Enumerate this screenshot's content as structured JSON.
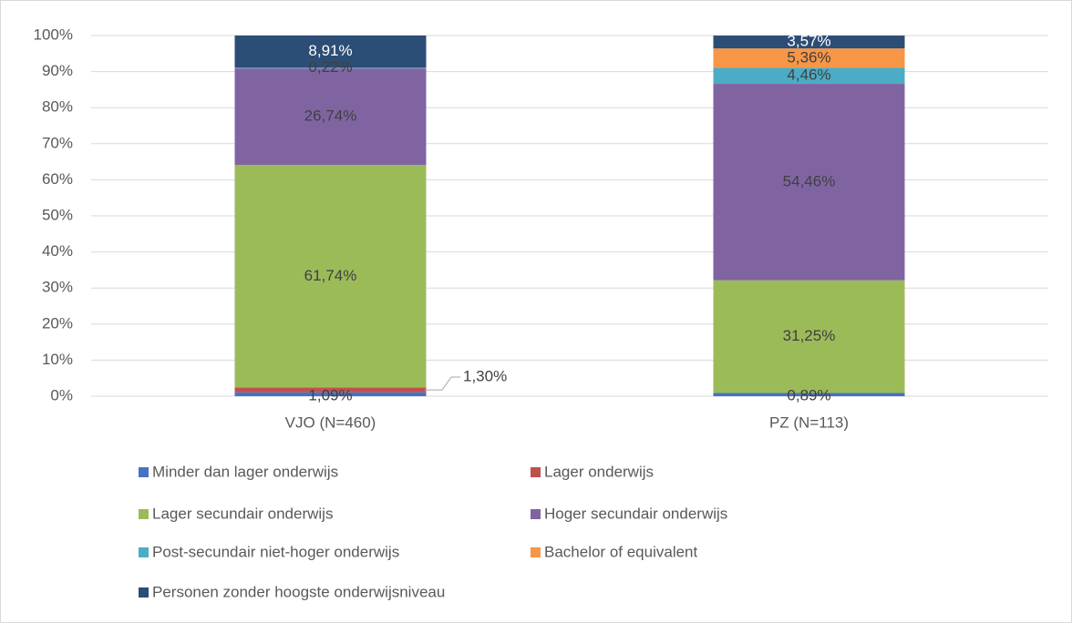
{
  "chart_data": {
    "type": "stacked_bar",
    "categories": [
      "VJO (N=460)",
      "PZ (N=113)"
    ],
    "series": [
      {
        "name": "Minder dan lager onderwijs",
        "color": "#4472c4",
        "values": [
          1.09,
          0.89
        ],
        "value_labels": [
          "1,09%",
          "0,89%"
        ]
      },
      {
        "name": "Lager onderwijs",
        "color": "#c0504d",
        "values": [
          1.3,
          null
        ],
        "value_labels": [
          "1,30%",
          null
        ]
      },
      {
        "name": "Lager secundair onderwijs",
        "color": "#9bbb59",
        "values": [
          61.74,
          31.25
        ],
        "value_labels": [
          "61,74%",
          "31,25%"
        ]
      },
      {
        "name": "Hoger secundair onderwijs",
        "color": "#8064a2",
        "values": [
          26.74,
          54.46
        ],
        "value_labels": [
          "26,74%",
          "54,46%"
        ]
      },
      {
        "name": "Post-secundair niet-hoger onderwijs",
        "color": "#4bacc6",
        "values": [
          0.22,
          4.46
        ],
        "value_labels": [
          "0,22%",
          "4,46%"
        ]
      },
      {
        "name": "Bachelor of equivalent",
        "color": "#f79646",
        "values": [
          null,
          5.36
        ],
        "value_labels": [
          null,
          "5,36%"
        ]
      },
      {
        "name": "Personen zonder hoogste onderwijsniveau",
        "color": "#2c4d75",
        "values": [
          8.91,
          3.57
        ],
        "value_labels": [
          "8,91%",
          "3,57%"
        ]
      }
    ],
    "ylim": [
      0,
      100
    ],
    "yticks": [
      {
        "value": 0,
        "label": "0%"
      },
      {
        "value": 10,
        "label": "10%"
      },
      {
        "value": 20,
        "label": "20%"
      },
      {
        "value": 30,
        "label": "30%"
      },
      {
        "value": 40,
        "label": "40%"
      },
      {
        "value": 50,
        "label": "50%"
      },
      {
        "value": 60,
        "label": "60%"
      },
      {
        "value": 70,
        "label": "70%"
      },
      {
        "value": 80,
        "label": "80%"
      },
      {
        "value": 90,
        "label": "90%"
      },
      {
        "value": 100,
        "label": "100%"
      }
    ],
    "grid": true,
    "legend": "bottom"
  }
}
